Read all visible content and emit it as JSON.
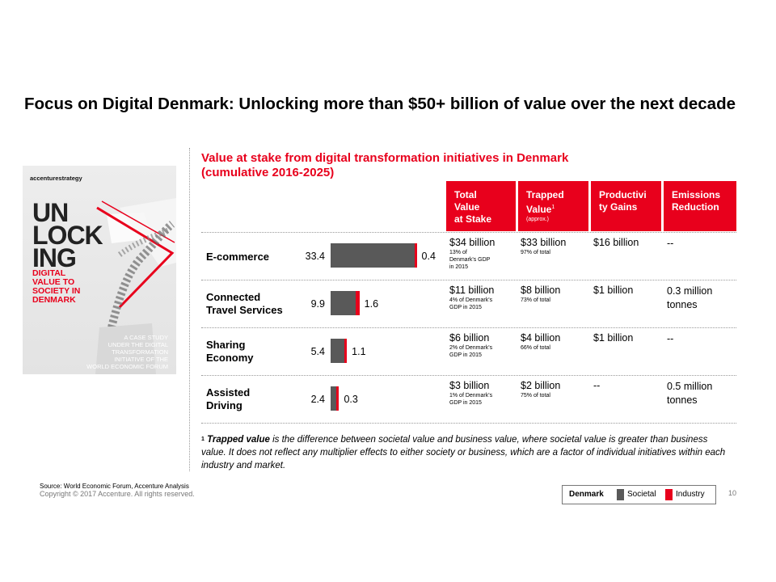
{
  "title": "Focus on Digital Denmark: Unlocking more than $50+ billion of value over the next decade",
  "subtitle_line1": "Value at stake from digital transformation initiatives in Denmark",
  "subtitle_line2": "(cumulative 2016-2025)",
  "cover": {
    "brand": "accenturestrategy",
    "big_line1": "UN",
    "big_line2": "LOCK",
    "big_line3": "ING",
    "red_line1": "DIGITAL",
    "red_line2": "VALUE TO",
    "red_line3": "SOCIETY IN",
    "red_line4": "DENMARK",
    "case_line1": "A CASE STUDY",
    "case_line2": "UNDER THE DIGITAL",
    "case_line3": "TRANSFORMATION",
    "case_line4": "INITIATIVE OF THE",
    "case_line5": "WORLD ECONOMIC FORUM"
  },
  "headers": {
    "total_l1": "Total",
    "total_l2": "Value",
    "total_l3": "at Stake",
    "trapped_l1": "Trapped",
    "trapped_l2": "Value",
    "trapped_sup": "1",
    "trapped_note": "(approx.)",
    "prod_l1": "Productivi",
    "prod_l2": "ty Gains",
    "em_l1": "Emissions",
    "em_l2": "Reduction"
  },
  "rows": [
    {
      "label_l1": "E-commerce",
      "label_l2": "",
      "societal": "33.4",
      "industry": "0.4",
      "total": "$34 billion",
      "total_note_l1": "13% of",
      "total_note_l2": "Denmark's GDP",
      "total_note_l3": "in 2015",
      "trapped": "$33 billion",
      "trapped_note": "97% of total",
      "productivity": "$16 billion",
      "emissions_l1": "--",
      "emissions_l2": ""
    },
    {
      "label_l1": "Connected",
      "label_l2": "Travel Services",
      "societal": "9.9",
      "industry": "1.6",
      "total": "$11 billion",
      "total_note_l1": "4% of Denmark's",
      "total_note_l2": "GDP in 2015",
      "total_note_l3": "",
      "trapped": "$8 billion",
      "trapped_note": "73% of total",
      "productivity": "$1 billion",
      "emissions_l1": "0.3 million",
      "emissions_l2": "tonnes"
    },
    {
      "label_l1": "Sharing",
      "label_l2": "Economy",
      "societal": "5.4",
      "industry": "1.1",
      "total": "$6 billion",
      "total_note_l1": "2% of Denmark's",
      "total_note_l2": "GDP in 2015",
      "total_note_l3": "",
      "trapped": "$4 billion",
      "trapped_note": "66% of total",
      "productivity": "$1 billion",
      "emissions_l1": "--",
      "emissions_l2": ""
    },
    {
      "label_l1": "Assisted",
      "label_l2": "Driving",
      "societal": "2.4",
      "industry": "0.3",
      "total": "$3 billion",
      "total_note_l1": "1% of Denmark's",
      "total_note_l2": "GDP in 2015",
      "total_note_l3": "",
      "trapped": "$2 billion",
      "trapped_note": "75% of total",
      "productivity": "--",
      "emissions_l1": "0.5 million",
      "emissions_l2": "tonnes"
    }
  ],
  "chart_data": {
    "type": "bar",
    "orientation": "horizontal-stacked",
    "categories": [
      "E-commerce",
      "Connected Travel Services",
      "Sharing Economy",
      "Assisted Driving"
    ],
    "series": [
      {
        "name": "Societal",
        "values": [
          33.4,
          9.9,
          5.4,
          2.4
        ]
      },
      {
        "name": "Industry",
        "values": [
          0.4,
          1.6,
          1.1,
          0.3
        ]
      }
    ],
    "legend_placement": "bottom-right"
  },
  "footnote": {
    "sup": "1",
    "bold": "Trapped value",
    "text": " is the difference between societal value and business value, where societal value is greater than business value. It does not reflect any multiplier effects to either society or business, which are a factor of individual initiatives within each industry and market."
  },
  "source": "Source: World Economic Forum, Accenture Analysis",
  "copyright": "Copyright © 2017 Accenture. All rights reserved.",
  "legend": {
    "title": "Denmark",
    "societal": "Societal",
    "industry": "Industry"
  },
  "page_number": "10",
  "colors": {
    "accent": "#e8001c",
    "societal": "#595959"
  }
}
